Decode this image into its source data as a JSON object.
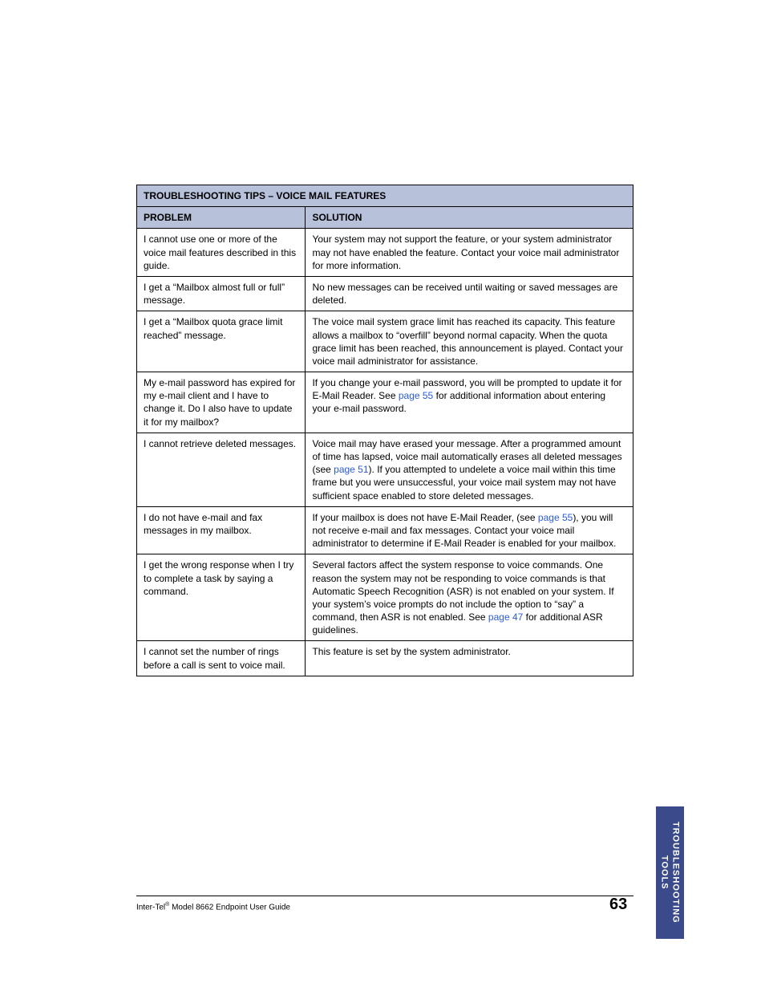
{
  "table": {
    "title": "TROUBLESHOOTING TIPS – VOICE MAIL FEATURES",
    "headers": {
      "problem": "PROBLEM",
      "solution": "SOLUTION"
    },
    "header_bg": "#b7c1da",
    "border_color": "#000000",
    "link_color": "#2a5bd7",
    "rows": [
      {
        "problem": "I cannot use one or more of the voice mail features described in this guide.",
        "solution": "Your system may not support the feature, or your system administrator may not have enabled the feature. Contact your voice mail administrator for more information."
      },
      {
        "problem": "I get a “Mailbox almost full or full” message.",
        "solution": " No new messages can be received until waiting or saved messages are deleted."
      },
      {
        "problem": "I get a “Mailbox quota grace limit reached” message.",
        "solution": "The voice mail system grace limit has reached its capacity. This feature allows a mailbox to “overfill” beyond normal capacity. When the quota grace limit has been reached, this announcement is played. Contact your voice mail administrator for assistance."
      },
      {
        "problem": "My e-mail password has expired for my e-mail client and I have to change it. Do I also have to update it for my mailbox?",
        "solution_pre": "If you change your e-mail password, you will be prompted to update it for E-Mail Reader. See ",
        "solution_link": "page 55",
        "solution_post": " for additional information about entering your e-mail password."
      },
      {
        "problem": "I cannot retrieve deleted messages.",
        "solution_pre": "Voice mail may have erased your message. After a programmed amount of time has lapsed, voice mail automatically erases all deleted messages (see ",
        "solution_link": "page 51",
        "solution_post": "). If you attempted to undelete a voice mail within this time frame but you were unsuccessful, your voice mail system may not have sufficient space enabled to store deleted messages."
      },
      {
        "problem": "I do not have e-mail and fax messages in my mailbox.",
        "solution_pre": "If your mailbox is does not have E-Mail Reader, (see ",
        "solution_link": "page 55",
        "solution_post": "), you will not receive e-mail and fax messages. Contact your voice mail administrator to determine if E-Mail Reader is enabled for your mailbox."
      },
      {
        "problem": "I get the wrong response when I try to complete a task by saying a command.",
        "solution_pre": "Several factors affect the system response to voice commands. One reason the system may not be responding to voice commands is that Automatic Speech Recognition (ASR) is not enabled on your system. If your system’s voice prompts do not include the option to “say” a command, then ASR is not enabled. See ",
        "solution_link": "page 47",
        "solution_post": " for additional ASR guidelines."
      },
      {
        "problem": "I cannot set the number of rings before a call is sent to voice mail.",
        "solution": "This feature is set by the system administrator."
      }
    ]
  },
  "footer": {
    "brand_pre": "Inter-Tel",
    "reg": "®",
    "brand_post": " Model 8662 Endpoint User Guide",
    "page_number": "63"
  },
  "side_tab": {
    "line1": "TROUBLESHOOTING",
    "line2": "TOOLS",
    "bg": "#3a4a8a"
  }
}
